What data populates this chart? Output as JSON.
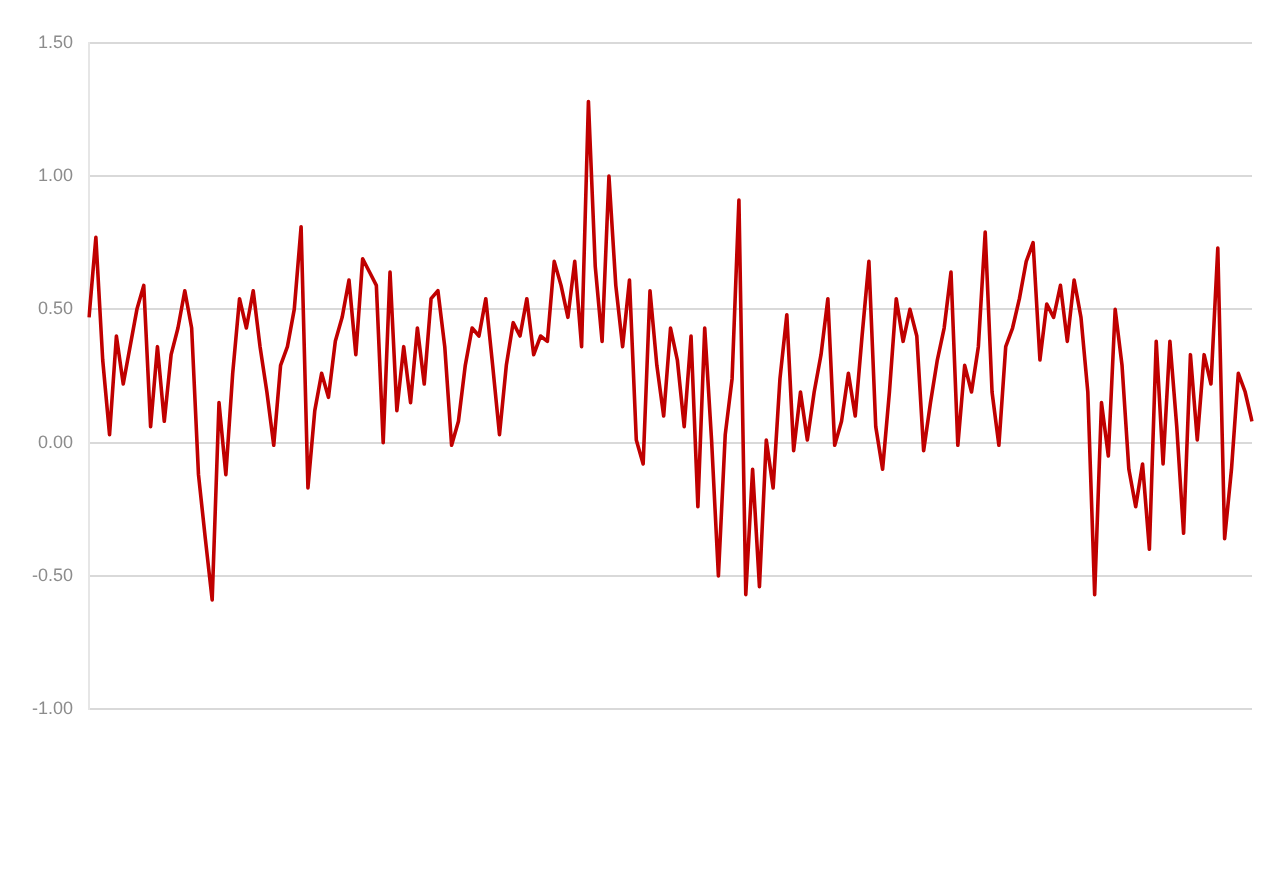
{
  "chart_data": {
    "type": "line",
    "categories": [
      null,
      null,
      null,
      null,
      null,
      null,
      null,
      null,
      null,
      null,
      null,
      null,
      null,
      null,
      null,
      null,
      null,
      null,
      null,
      null,
      null,
      null,
      null,
      null,
      null,
      null,
      null,
      null,
      null,
      null,
      null,
      null,
      null,
      null,
      null,
      null,
      null,
      null,
      null,
      null,
      null,
      null,
      null,
      null,
      null,
      null,
      null,
      null,
      null,
      null,
      null,
      null,
      null,
      null,
      null,
      null,
      null,
      null,
      null,
      null,
      null,
      null,
      null,
      null,
      null,
      null,
      null,
      null,
      null,
      null,
      null,
      null,
      null,
      null,
      null,
      null,
      null,
      null,
      null,
      null,
      null,
      null,
      null,
      null,
      null,
      null,
      null,
      null,
      null,
      null,
      null,
      null,
      null,
      null,
      null,
      null,
      null,
      null,
      null,
      null,
      null,
      null,
      null,
      null,
      null,
      null,
      null,
      null,
      null,
      null,
      null,
      null,
      null,
      null,
      null,
      null,
      null,
      null,
      null,
      null,
      null,
      null,
      null,
      null,
      null,
      null,
      null,
      null,
      null,
      null,
      null,
      null,
      null,
      null,
      null,
      null,
      null,
      null,
      null,
      null,
      null,
      null,
      null,
      null,
      null,
      null,
      null,
      null,
      null,
      null,
      null,
      null,
      null,
      null,
      null,
      null,
      null,
      null,
      null,
      null,
      null,
      null,
      null,
      null,
      null,
      null,
      null,
      null,
      null,
      null,
      null
    ],
    "series": [
      {
        "color": "#c00000",
        "values": [
          0.47,
          0.77,
          0.31,
          0.03,
          0.4,
          0.22,
          0.36,
          0.5,
          0.59,
          0.06,
          0.36,
          0.08,
          0.33,
          0.43,
          0.57,
          0.43,
          -0.12,
          -0.36,
          -0.59,
          0.15,
          -0.12,
          0.26,
          0.54,
          0.43,
          0.57,
          0.36,
          0.19,
          -0.01,
          0.29,
          0.36,
          0.5,
          0.81,
          -0.17,
          0.12,
          0.26,
          0.17,
          0.38,
          0.47,
          0.61,
          0.33,
          0.69,
          0.64,
          0.59,
          0.0,
          0.64,
          0.12,
          0.36,
          0.15,
          0.43,
          0.22,
          0.54,
          0.57,
          0.36,
          -0.01,
          0.08,
          0.29,
          0.43,
          0.4,
          0.54,
          0.29,
          0.03,
          0.29,
          0.45,
          0.4,
          0.54,
          0.33,
          0.4,
          0.38,
          0.68,
          0.59,
          0.47,
          0.68,
          0.36,
          1.28,
          0.66,
          0.38,
          1.0,
          0.59,
          0.36,
          0.61,
          0.01,
          -0.08,
          0.57,
          0.29,
          0.1,
          0.43,
          0.31,
          0.06,
          0.4,
          -0.24,
          0.43,
          0.01,
          -0.5,
          0.03,
          0.24,
          0.91,
          -0.57,
          -0.1,
          -0.54,
          0.01,
          -0.17,
          0.24,
          0.48,
          -0.03,
          0.19,
          0.01,
          0.19,
          0.33,
          0.54,
          -0.01,
          0.08,
          0.26,
          0.1,
          0.4,
          0.68,
          0.06,
          -0.1,
          0.19,
          0.54,
          0.38,
          0.5,
          0.4,
          -0.03,
          0.15,
          0.31,
          0.43,
          0.64,
          -0.01,
          0.29,
          0.19,
          0.36,
          0.79,
          0.19,
          -0.01,
          0.36,
          0.43,
          0.54,
          0.68,
          0.75,
          0.31,
          0.52,
          0.47,
          0.59,
          0.38,
          0.61,
          0.47,
          0.19,
          -0.57,
          0.15,
          -0.05,
          0.5,
          0.29,
          -0.1,
          -0.24,
          -0.08,
          -0.4,
          0.38,
          -0.08,
          0.38,
          0.06,
          -0.34,
          0.33,
          0.01,
          0.33,
          0.22,
          0.73,
          -0.36,
          -0.1,
          0.26,
          0.19,
          0.08
        ]
      }
    ],
    "ylim": [
      -1,
      1.5
    ],
    "yticks": [
      {
        "value": 1.5,
        "label": "1.50"
      },
      {
        "value": 1,
        "label": "1.00"
      },
      {
        "value": 0.5,
        "label": "0.50"
      },
      {
        "value": 0,
        "label": "0.00"
      },
      {
        "value": -0.5,
        "label": "-0.50"
      },
      {
        "value": -1,
        "label": "-1.00"
      }
    ],
    "grid": "y",
    "legend": false,
    "marker": "none",
    "line_style": "solid"
  }
}
